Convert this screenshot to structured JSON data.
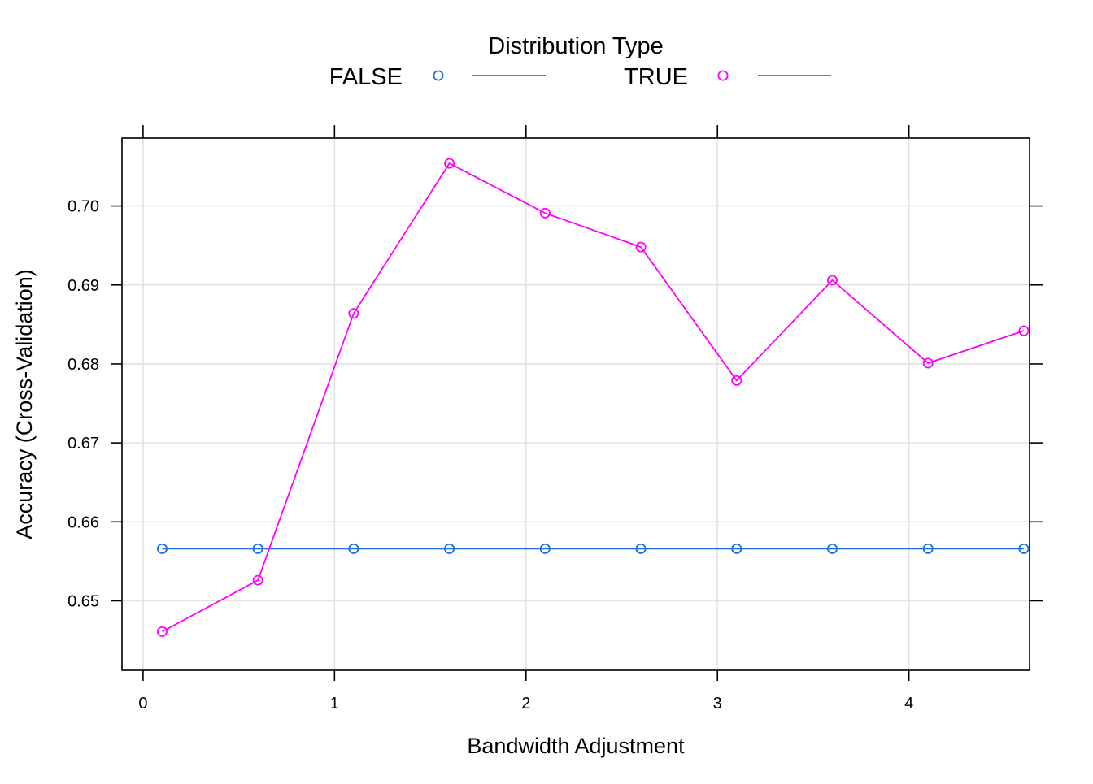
{
  "chart_data": {
    "type": "line",
    "title": "",
    "xlabel": "Bandwidth Adjustment",
    "ylabel": "Accuracy (Cross-Validation)",
    "legend": {
      "title": "Distribution Type",
      "position": "top",
      "entries": [
        "FALSE",
        "TRUE"
      ]
    },
    "grid": true,
    "xlim": [
      -0.11,
      4.63
    ],
    "ylim": [
      0.6412,
      0.7086
    ],
    "xticks": [
      0,
      1,
      2,
      3,
      4
    ],
    "xtick_labels": [
      "0",
      "1",
      "2",
      "3",
      "4"
    ],
    "yticks": [
      0.65,
      0.66,
      0.67,
      0.68,
      0.69,
      0.7
    ],
    "ytick_labels": [
      "0.65",
      "0.66",
      "0.67",
      "0.68",
      "0.69",
      "0.70"
    ],
    "x": [
      0.1,
      0.6,
      1.1,
      1.6,
      2.1,
      2.6,
      3.1,
      3.6,
      4.1,
      4.6
    ],
    "series": [
      {
        "name": "FALSE",
        "color": "#1f6fe6",
        "values": [
          0.6566,
          0.6566,
          0.6566,
          0.6566,
          0.6566,
          0.6566,
          0.6566,
          0.6566,
          0.6566,
          0.6566
        ]
      },
      {
        "name": "TRUE",
        "color": "#ff00ff",
        "values": [
          0.6461,
          0.6526,
          0.6864,
          0.7054,
          0.6991,
          0.6948,
          0.6779,
          0.6906,
          0.6801,
          0.6842
        ]
      }
    ]
  }
}
